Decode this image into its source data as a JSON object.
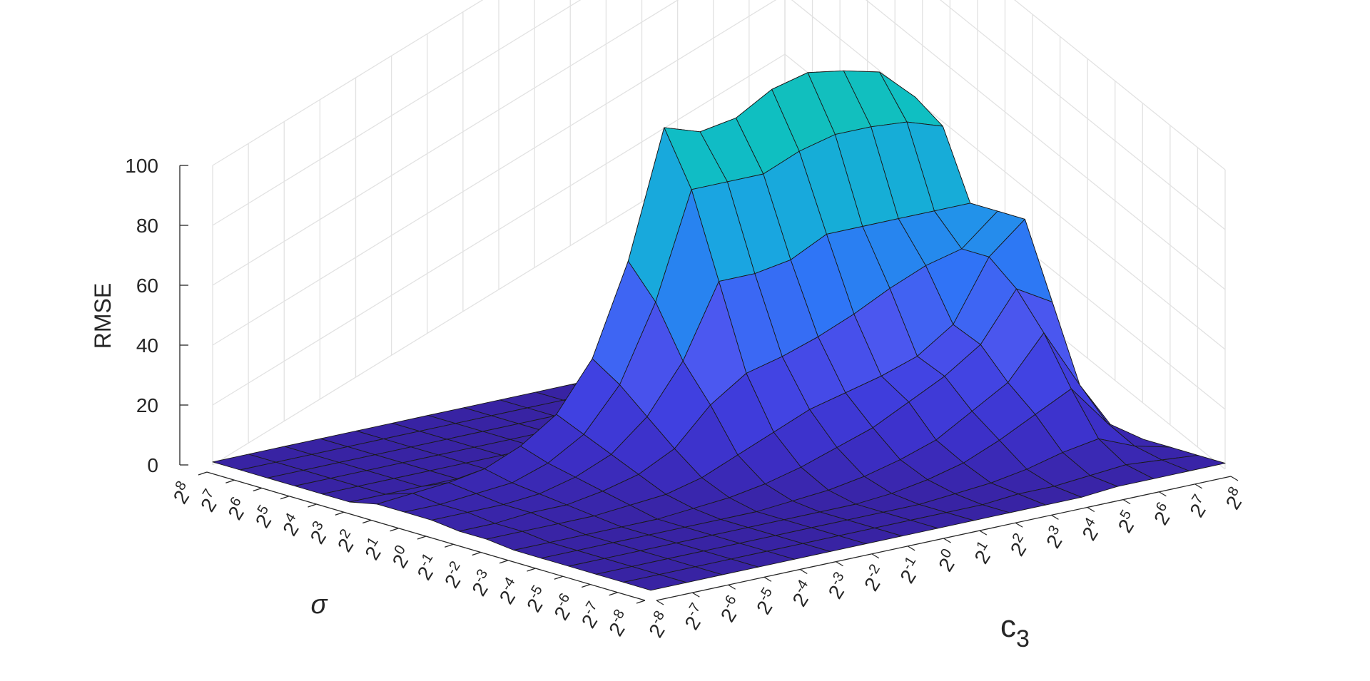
{
  "chart_data": {
    "type": "surface3d",
    "title": "",
    "zlabel": "RMSE",
    "sigma_label": "σ",
    "c3_label": "c",
    "c3_label_sub": "3",
    "zlim": [
      0,
      100
    ],
    "z_ticks": [
      "0",
      "20",
      "40",
      "60",
      "80",
      "100"
    ],
    "z_tick_values": [
      0,
      20,
      40,
      60,
      80,
      100
    ],
    "sigma_exponents": [
      8,
      7,
      6,
      5,
      4,
      3,
      2,
      1,
      0,
      -1,
      -2,
      -3,
      -4,
      -5,
      -6,
      -7,
      -8
    ],
    "c3_exponents": [
      -8,
      -7,
      -6,
      -5,
      -4,
      -3,
      -2,
      -1,
      0,
      1,
      2,
      3,
      4,
      5,
      6,
      7,
      8
    ],
    "tick_base": "2",
    "grid": true,
    "colors": {
      "low": "#3a25a8",
      "mid": "#2f6ff5",
      "high": "#0fc0c0",
      "edge": "#1a1a1a",
      "grid": "#e2e2e2",
      "axis": "#262626"
    },
    "rmse_rows_sigma_2e3_to_2e_minus8": [
      [
        1,
        1,
        1,
        1,
        1,
        1,
        1,
        1,
        1,
        1,
        1,
        1,
        1,
        2,
        2,
        2,
        2
      ],
      [
        1,
        1,
        1,
        1,
        1,
        1,
        1,
        1,
        1,
        1,
        1,
        2,
        2,
        3,
        4,
        3,
        2
      ],
      [
        1,
        1,
        1,
        1,
        1,
        1,
        1,
        1,
        1,
        1,
        2,
        3,
        5,
        8,
        10,
        5,
        2
      ],
      [
        1,
        1,
        1,
        1,
        1,
        1,
        1,
        1,
        1,
        2,
        4,
        7,
        12,
        18,
        24,
        10,
        2
      ],
      [
        1,
        1,
        1,
        1,
        1,
        1,
        1,
        2,
        3,
        5,
        8,
        12,
        19,
        26,
        40,
        20,
        2
      ],
      [
        1,
        1,
        1,
        1,
        1,
        2,
        3,
        5,
        8,
        12,
        16,
        22,
        28,
        36,
        52,
        45,
        2
      ],
      [
        2,
        2,
        2,
        2,
        3,
        4,
        7,
        12,
        17,
        22,
        25,
        28,
        32,
        40,
        60,
        70,
        2
      ],
      [
        2,
        2,
        3,
        3,
        5,
        8,
        14,
        26,
        34,
        37,
        41,
        46,
        52,
        57,
        60,
        70,
        2
      ],
      [
        3,
        3,
        3,
        4,
        7,
        12,
        22,
        38,
        62,
        62,
        64,
        70,
        70,
        70,
        70,
        70,
        2
      ],
      [
        3,
        3,
        4,
        5,
        9,
        16,
        30,
        55,
        90,
        90,
        90,
        95,
        98,
        98,
        97,
        93,
        2
      ],
      [
        3,
        4,
        5,
        7,
        12,
        20,
        36,
        66,
        108,
        104,
        106,
        113,
        116,
        114,
        111,
        100,
        2
      ],
      [
        4,
        4,
        6,
        9,
        15,
        24,
        42,
        75,
        118,
        114,
        116,
        124,
        127,
        126,
        122,
        108,
        2
      ]
    ]
  }
}
